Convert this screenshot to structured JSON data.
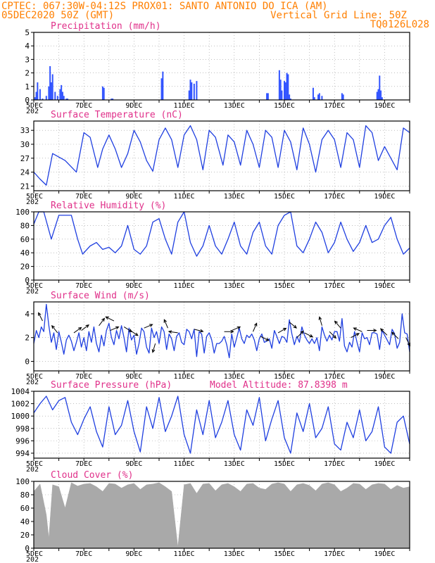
{
  "header": {
    "line1_left": "CPTEC:  067:30W-04:12S  PROX01: SANTO ANTONIO DO ICA (AM)",
    "line2_left": "05DEC2020 50Z (GMT)",
    "line2_right": "Vertical Grid Line: 50Z",
    "line3_right": "TQ0126L028"
  },
  "colors": {
    "header": "#ff7f00",
    "title": "#e0308a",
    "line": "#1f3fe0",
    "bar": "#3355ff",
    "cloud": "#a9a9a9",
    "grid": "#999999"
  },
  "x_axis": {
    "first_label": "5DEC",
    "labels": [
      "7DEC",
      "9DEC",
      "11DEC",
      "13DEC",
      "15DEC",
      "17DEC",
      "19DEC"
    ],
    "label_days": [
      7,
      9,
      11,
      13,
      15,
      17,
      19
    ],
    "start_day": 5.0,
    "end_day": 20.0,
    "clipped_year_label": "202"
  },
  "chart_data": [
    {
      "type": "bar",
      "title": "Precipitation (mm/h)",
      "ylim": [
        0,
        5
      ],
      "yticks": [
        "0",
        "1",
        "2",
        "3",
        "4",
        "5"
      ],
      "x": [
        5.05,
        5.1,
        5.15,
        5.25,
        5.35,
        5.5,
        5.6,
        5.65,
        5.7,
        5.75,
        5.85,
        5.95,
        6.05,
        6.1,
        6.15,
        6.2,
        6.3,
        6.35,
        7.75,
        7.8,
        8.1,
        8.15,
        10.1,
        10.15,
        11.2,
        11.25,
        11.3,
        11.4,
        11.5,
        14.3,
        14.35,
        14.8,
        14.85,
        14.9,
        15.0,
        15.05,
        15.1,
        15.15,
        15.2,
        15.25,
        16.15,
        16.2,
        16.35,
        16.4,
        16.5,
        17.3,
        17.35,
        18.7,
        18.75,
        18.8,
        18.85,
        18.9
      ],
      "values": [
        0.2,
        0.6,
        1.3,
        0.8,
        0.1,
        0.3,
        1.0,
        2.5,
        1.3,
        1.9,
        0.6,
        0.3,
        0.8,
        1.1,
        0.6,
        0.3,
        0.1,
        0.1,
        1.0,
        0.9,
        0.1,
        0.1,
        1.6,
        2.1,
        0.7,
        1.5,
        1.3,
        1.2,
        1.4,
        0.5,
        0.5,
        2.2,
        1.5,
        0.7,
        1.4,
        1.3,
        2.0,
        1.9,
        0.4,
        0.1,
        0.9,
        0.2,
        0.4,
        0.5,
        0.3,
        0.5,
        0.4,
        0.6,
        0.8,
        1.8,
        0.7,
        0.2
      ]
    },
    {
      "type": "line",
      "title": "Surface Temperature (nC)",
      "ylim": [
        20,
        35
      ],
      "yticks": [
        "21",
        "24",
        "27",
        "30",
        "33"
      ],
      "ytick_values": [
        21,
        24,
        27,
        30,
        33
      ],
      "x": [
        5.0,
        5.25,
        5.5,
        5.75,
        6.25,
        6.7,
        7.0,
        7.25,
        7.55,
        7.75,
        8.0,
        8.25,
        8.5,
        8.75,
        9.0,
        9.25,
        9.5,
        9.75,
        10.0,
        10.25,
        10.5,
        10.75,
        11.0,
        11.25,
        11.5,
        11.75,
        12.0,
        12.25,
        12.55,
        12.75,
        13.0,
        13.25,
        13.5,
        13.75,
        14.0,
        14.25,
        14.5,
        14.75,
        15.0,
        15.25,
        15.5,
        15.75,
        16.0,
        16.25,
        16.5,
        16.75,
        17.0,
        17.25,
        17.5,
        17.75,
        18.0,
        18.25,
        18.5,
        18.75,
        19.0,
        19.25,
        19.5,
        19.75,
        20.0
      ],
      "values": [
        24.0,
        22.5,
        21.2,
        28.0,
        26.5,
        24.0,
        32.5,
        31.5,
        25.0,
        29.0,
        32.0,
        29.0,
        25.0,
        28.0,
        33.0,
        30.5,
        26.5,
        24.2,
        31.0,
        33.5,
        31.0,
        25.0,
        32.0,
        34.0,
        31.0,
        24.5,
        33.0,
        31.5,
        25.5,
        32.0,
        30.5,
        25.5,
        33.0,
        30.0,
        25.0,
        33.0,
        31.5,
        25.0,
        33.0,
        30.5,
        24.5,
        33.5,
        30.0,
        24.0,
        31.0,
        33.0,
        31.0,
        25.0,
        32.5,
        31.0,
        25.0,
        34.0,
        32.5,
        26.5,
        29.5,
        27.0,
        24.5,
        33.5,
        32.5
      ]
    },
    {
      "type": "line",
      "title": "Relative Humidity (%)",
      "ylim": [
        0,
        100
      ],
      "yticks": [
        "0",
        "20",
        "40",
        "60",
        "80",
        "100"
      ],
      "ytick_values": [
        0,
        20,
        40,
        60,
        80,
        100
      ],
      "x": [
        5.0,
        5.2,
        5.4,
        5.7,
        6.0,
        6.5,
        6.75,
        6.95,
        7.25,
        7.5,
        7.75,
        8.0,
        8.25,
        8.5,
        8.75,
        9.0,
        9.25,
        9.5,
        9.75,
        10.0,
        10.25,
        10.5,
        10.75,
        11.0,
        11.25,
        11.5,
        11.75,
        12.0,
        12.25,
        12.5,
        12.75,
        13.0,
        13.25,
        13.5,
        13.75,
        14.0,
        14.25,
        14.5,
        14.75,
        15.0,
        15.25,
        15.5,
        15.75,
        16.0,
        16.25,
        16.5,
        16.75,
        17.0,
        17.25,
        17.5,
        17.75,
        18.0,
        18.25,
        18.5,
        18.75,
        19.0,
        19.25,
        19.5,
        19.75,
        20.0
      ],
      "values": [
        82.0,
        100.0,
        100.0,
        60.0,
        95.0,
        95.0,
        60.0,
        38.0,
        50.0,
        55.0,
        45.0,
        48.0,
        40.0,
        50.0,
        80.0,
        45.0,
        38.0,
        50.0,
        85.0,
        90.0,
        60.0,
        38.0,
        85.0,
        100.0,
        55.0,
        35.0,
        50.0,
        80.0,
        50.0,
        38.0,
        60.0,
        85.0,
        50.0,
        38.0,
        70.0,
        85.0,
        50.0,
        38.0,
        80.0,
        95.0,
        100.0,
        50.0,
        40.0,
        60.0,
        85.0,
        70.0,
        40.0,
        55.0,
        85.0,
        60.0,
        42.0,
        55.0,
        80.0,
        55.0,
        60.0,
        80.0,
        92.0,
        60.0,
        38.0,
        47.0
      ]
    },
    {
      "type": "line",
      "title": "Surface Wind (m/s)",
      "ylim": [
        -0.8,
        5
      ],
      "yticks": [
        "0",
        "2",
        "4"
      ],
      "ytick_values": [
        0,
        2,
        4
      ],
      "x": [
        5.0,
        5.1,
        5.2,
        5.3,
        5.4,
        5.5,
        5.6,
        5.7,
        5.8,
        5.9,
        6.0,
        6.1,
        6.2,
        6.3,
        6.4,
        6.5,
        6.6,
        6.7,
        6.8,
        6.9,
        7.0,
        7.1,
        7.2,
        7.3,
        7.4,
        7.5,
        7.6,
        7.7,
        7.8,
        7.9,
        8.0,
        8.1,
        8.2,
        8.3,
        8.4,
        8.5,
        8.6,
        8.7,
        8.8,
        8.9,
        9.0,
        9.1,
        9.2,
        9.3,
        9.4,
        9.5,
        9.6,
        9.7,
        9.8,
        9.9,
        10.0,
        10.1,
        10.2,
        10.3,
        10.4,
        10.5,
        10.6,
        10.7,
        10.8,
        10.9,
        11.0,
        11.1,
        11.2,
        11.3,
        11.4,
        11.5,
        11.6,
        11.7,
        11.8,
        11.9,
        12.0,
        12.1,
        12.2,
        12.3,
        12.4,
        12.5,
        12.6,
        12.7,
        12.8,
        12.9,
        13.0,
        13.1,
        13.2,
        13.3,
        13.4,
        13.5,
        13.6,
        13.7,
        13.8,
        13.9,
        14.0,
        14.1,
        14.2,
        14.3,
        14.4,
        14.5,
        14.6,
        14.7,
        14.8,
        14.9,
        15.0,
        15.1,
        15.2,
        15.3,
        15.4,
        15.5,
        15.6,
        15.7,
        15.8,
        15.9,
        16.0,
        16.1,
        16.2,
        16.3,
        16.4,
        16.5,
        16.6,
        16.7,
        16.8,
        16.9,
        17.0,
        17.1,
        17.2,
        17.3,
        17.4,
        17.5,
        17.6,
        17.7,
        17.8,
        17.9,
        18.0,
        18.1,
        18.2,
        18.3,
        18.4,
        18.5,
        18.6,
        18.7,
        18.8,
        18.9,
        19.0,
        19.1,
        19.2,
        19.3,
        19.4,
        19.5,
        19.6,
        19.7,
        19.8,
        19.9,
        20.0
      ],
      "values": [
        1.5,
        2.6,
        2.0,
        2.9,
        2.5,
        4.8,
        3.0,
        1.6,
        2.4,
        1.0,
        2.5,
        1.6,
        0.6,
        1.8,
        2.2,
        1.7,
        0.9,
        1.6,
        2.4,
        1.2,
        2.0,
        0.9,
        2.5,
        1.6,
        2.9,
        1.5,
        0.8,
        2.2,
        1.3,
        2.6,
        3.2,
        2.0,
        1.4,
        2.6,
        1.9,
        3.0,
        2.0,
        0.8,
        2.8,
        1.8,
        2.2,
        0.6,
        1.5,
        2.8,
        2.5,
        1.2,
        0.7,
        2.8,
        2.0,
        2.5,
        1.5,
        2.9,
        2.5,
        1.0,
        2.3,
        1.9,
        0.9,
        2.1,
        2.4,
        1.6,
        1.4,
        2.7,
        2.5,
        1.9,
        2.7,
        0.4,
        2.5,
        2.3,
        0.7,
        2.1,
        2.4,
        1.8,
        0.7,
        1.5,
        1.5,
        1.7,
        2.1,
        1.4,
        0.3,
        2.3,
        1.2,
        2.0,
        2.8,
        1.9,
        1.5,
        2.2,
        2.0,
        2.3,
        1.8,
        0.9,
        1.9,
        2.3,
        1.6,
        1.7,
        1.9,
        1.1,
        2.6,
        2.1,
        1.5,
        2.1,
        2.0,
        1.6,
        3.5,
        2.3,
        1.4,
        2.1,
        1.6,
        2.9,
        2.2,
        1.8,
        1.5,
        1.9,
        1.5,
        2.0,
        0.9,
        2.9,
        2.2,
        1.7,
        2.2,
        1.8,
        2.5,
        2.5,
        1.7,
        3.6,
        1.3,
        0.8,
        1.6,
        1.2,
        2.5,
        1.6,
        0.8,
        2.4,
        1.9,
        2.0,
        1.4,
        2.4,
        2.4,
        2.3,
        1.0,
        2.6,
        2.2,
        1.8,
        1.4,
        2.7,
        2.3,
        1.1,
        1.6,
        4.0,
        2.4,
        2.3,
        0.8
      ],
      "arrows": [
        {
          "x": 5.35,
          "y": 3.4,
          "u": -0.5,
          "v": 1.0
        },
        {
          "x": 5.95,
          "y": 2.4,
          "u": -0.4,
          "v": 0.5
        },
        {
          "x": 6.6,
          "y": 2.4,
          "u": 0.7,
          "v": 0.5
        },
        {
          "x": 6.9,
          "y": 2.6,
          "u": 0.8,
          "v": 0.6
        },
        {
          "x": 7.6,
          "y": 3.0,
          "u": 0.6,
          "v": 0.8
        },
        {
          "x": 8.05,
          "y": 2.6,
          "u": 0.7,
          "v": 0.3
        },
        {
          "x": 8.2,
          "y": 3.4,
          "u": -0.8,
          "v": 0.4
        },
        {
          "x": 8.6,
          "y": 2.9,
          "u": 0.8,
          "v": -0.5
        },
        {
          "x": 8.85,
          "y": 2.6,
          "u": 0.6,
          "v": -0.4
        },
        {
          "x": 9.4,
          "y": 2.8,
          "u": 0.7,
          "v": 0.3
        },
        {
          "x": 9.85,
          "y": 1.5,
          "u": -0.3,
          "v": -1.0
        },
        {
          "x": 10.35,
          "y": 2.8,
          "u": -0.3,
          "v": 0.7
        },
        {
          "x": 10.75,
          "y": 2.4,
          "u": -0.7,
          "v": 0.1
        },
        {
          "x": 11.4,
          "y": 2.7,
          "u": 0.8,
          "v": -0.2
        },
        {
          "x": 12.6,
          "y": 2.5,
          "u": 0.8,
          "v": 0.0
        },
        {
          "x": 12.9,
          "y": 2.6,
          "u": 0.7,
          "v": 0.3
        },
        {
          "x": 13.75,
          "y": 2.5,
          "u": 0.3,
          "v": 0.7
        },
        {
          "x": 14.05,
          "y": 2.1,
          "u": 0.6,
          "v": -0.3
        },
        {
          "x": 14.75,
          "y": 2.4,
          "u": 0.7,
          "v": 0.4
        },
        {
          "x": 15.2,
          "y": 3.3,
          "u": 0.6,
          "v": -0.5
        },
        {
          "x": 15.5,
          "y": 2.0,
          "u": 0.5,
          "v": 0.5
        },
        {
          "x": 15.8,
          "y": 2.4,
          "u": 0.6,
          "v": -0.3
        },
        {
          "x": 16.5,
          "y": 3.0,
          "u": -0.2,
          "v": 0.7
        },
        {
          "x": 16.8,
          "y": 2.5,
          "u": 0.5,
          "v": -0.5
        },
        {
          "x": 17.25,
          "y": 2.8,
          "u": -0.6,
          "v": 0.7
        },
        {
          "x": 17.65,
          "y": 2.0,
          "u": 0.6,
          "v": 0.3
        },
        {
          "x": 18.1,
          "y": 2.5,
          "u": -0.7,
          "v": 0.3
        },
        {
          "x": 18.3,
          "y": 2.6,
          "u": 0.6,
          "v": 0.0
        },
        {
          "x": 19.1,
          "y": 2.2,
          "u": -0.5,
          "v": 0.5
        },
        {
          "x": 19.55,
          "y": 1.9,
          "u": -0.6,
          "v": 0.6
        },
        {
          "x": 19.85,
          "y": 2.0,
          "u": 0.3,
          "v": -0.6
        }
      ]
    },
    {
      "type": "line",
      "title": "Surface Pressure (hPa)",
      "annotation": "Model Altitude: 87.8398 m",
      "ylim": [
        993.2,
        1004.0
      ],
      "yticks": [
        "994",
        "996",
        "998",
        "1000",
        "1002",
        "1004"
      ],
      "ytick_values": [
        994,
        996,
        998,
        1000,
        1002,
        1004
      ],
      "x": [
        5.0,
        5.25,
        5.5,
        5.75,
        6.0,
        6.25,
        6.5,
        6.75,
        7.0,
        7.25,
        7.5,
        7.75,
        8.0,
        8.25,
        8.5,
        8.75,
        9.0,
        9.25,
        9.5,
        9.75,
        10.0,
        10.25,
        10.5,
        10.75,
        11.0,
        11.25,
        11.5,
        11.75,
        12.0,
        12.25,
        12.5,
        12.75,
        13.0,
        13.25,
        13.5,
        13.75,
        14.0,
        14.25,
        14.5,
        14.75,
        15.0,
        15.25,
        15.5,
        15.75,
        16.0,
        16.25,
        16.5,
        16.75,
        17.0,
        17.25,
        17.5,
        17.75,
        18.0,
        18.25,
        18.5,
        18.75,
        19.0,
        19.25,
        19.5,
        19.75,
        20.0
      ],
      "values": [
        1000.5,
        1002.0,
        1003.2,
        1001.0,
        1002.5,
        1003.0,
        999.0,
        997.0,
        999.5,
        1001.5,
        997.5,
        995.0,
        1001.5,
        997.0,
        998.5,
        1002.5,
        997.5,
        994.2,
        1001.5,
        998.0,
        1003.0,
        997.5,
        1000.0,
        1003.2,
        997.0,
        994.0,
        1001.0,
        997.0,
        1002.5,
        996.5,
        999.0,
        1002.5,
        997.0,
        994.5,
        1001.0,
        998.5,
        1003.0,
        996.0,
        999.5,
        1002.5,
        996.5,
        994.0,
        1000.5,
        997.5,
        1002.0,
        996.5,
        998.0,
        1001.5,
        995.5,
        994.5,
        999.0,
        996.5,
        1001.0,
        996.0,
        997.5,
        1001.5,
        995.0,
        994.0,
        999.0,
        1000.0,
        995.5
      ]
    },
    {
      "type": "area",
      "title": "Cloud Cover (%)",
      "ylim": [
        0,
        100
      ],
      "yticks": [
        "0",
        "20",
        "40",
        "60",
        "80",
        "100"
      ],
      "ytick_values": [
        0,
        20,
        40,
        60,
        80,
        100
      ],
      "x": [
        5.0,
        5.25,
        5.5,
        5.6,
        5.75,
        6.0,
        6.25,
        6.5,
        6.75,
        7.0,
        7.25,
        7.5,
        7.75,
        8.0,
        8.25,
        8.5,
        8.75,
        9.0,
        9.25,
        9.5,
        9.75,
        10.0,
        10.25,
        10.5,
        10.75,
        11.0,
        11.25,
        11.5,
        11.75,
        12.0,
        12.25,
        12.5,
        12.75,
        13.0,
        13.25,
        13.5,
        13.75,
        14.0,
        14.25,
        14.5,
        14.75,
        15.0,
        15.25,
        15.5,
        15.75,
        16.0,
        16.25,
        16.5,
        16.75,
        17.0,
        17.25,
        17.5,
        17.75,
        18.0,
        18.25,
        18.5,
        18.75,
        19.0,
        19.25,
        19.5,
        19.75,
        20.0
      ],
      "values": [
        85.0,
        96.0,
        50.0,
        15.0,
        95.0,
        92.0,
        60.0,
        98.0,
        93.0,
        96.0,
        97.0,
        92.0,
        85.0,
        97.0,
        96.0,
        90.0,
        95.0,
        97.0,
        88.0,
        95.0,
        96.0,
        98.0,
        92.0,
        85.0,
        2.0,
        95.0,
        97.0,
        82.0,
        96.0,
        97.0,
        86.0,
        95.0,
        97.0,
        92.0,
        85.0,
        96.0,
        97.0,
        90.0,
        88.0,
        96.0,
        98.0,
        96.0,
        85.0,
        95.0,
        97.0,
        94.0,
        86.0,
        96.0,
        98.0,
        95.0,
        85.0,
        90.0,
        97.0,
        96.0,
        88.0,
        95.0,
        97.0,
        96.0,
        88.0,
        94.0,
        90.0,
        92.0
      ]
    }
  ]
}
